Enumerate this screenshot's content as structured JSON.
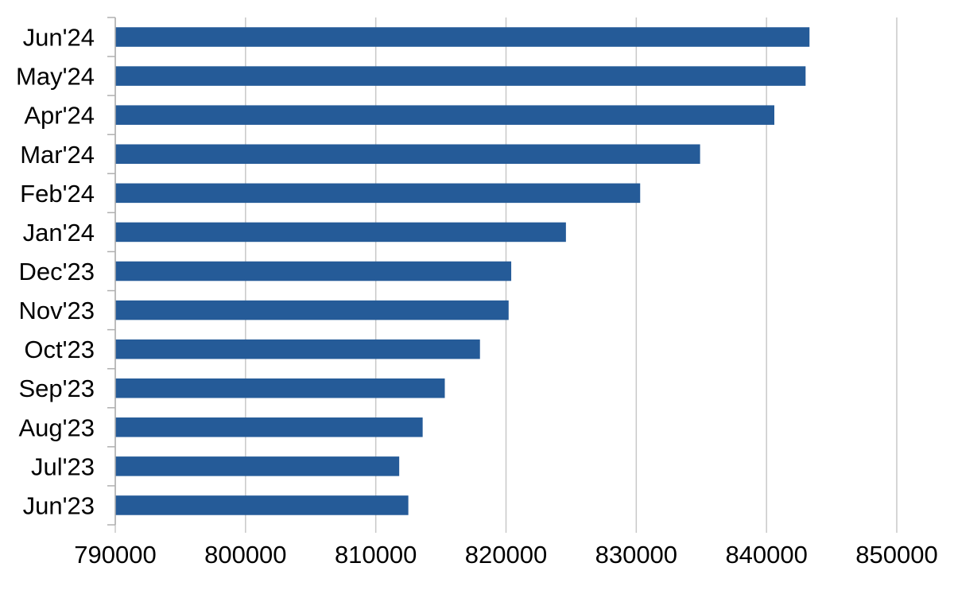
{
  "chart_data": {
    "type": "bar",
    "orientation": "horizontal",
    "categories": [
      "Jun'23",
      "Jul'23",
      "Aug'23",
      "Sep'23",
      "Oct'23",
      "Nov'23",
      "Dec'23",
      "Jan'24",
      "Feb'24",
      "Mar'24",
      "Apr'24",
      "May'24",
      "Jun'24"
    ],
    "values": [
      812500,
      811800,
      813600,
      815300,
      818000,
      820200,
      820400,
      824600,
      830300,
      834900,
      840600,
      843000,
      843300
    ],
    "xlim": [
      790000,
      850000
    ],
    "xticks": [
      "790000",
      "800000",
      "810000",
      "820000",
      "830000",
      "840000",
      "850000"
    ],
    "title": "",
    "xlabel": "",
    "ylabel": "",
    "grid": true,
    "bar_color": "#255b98"
  }
}
